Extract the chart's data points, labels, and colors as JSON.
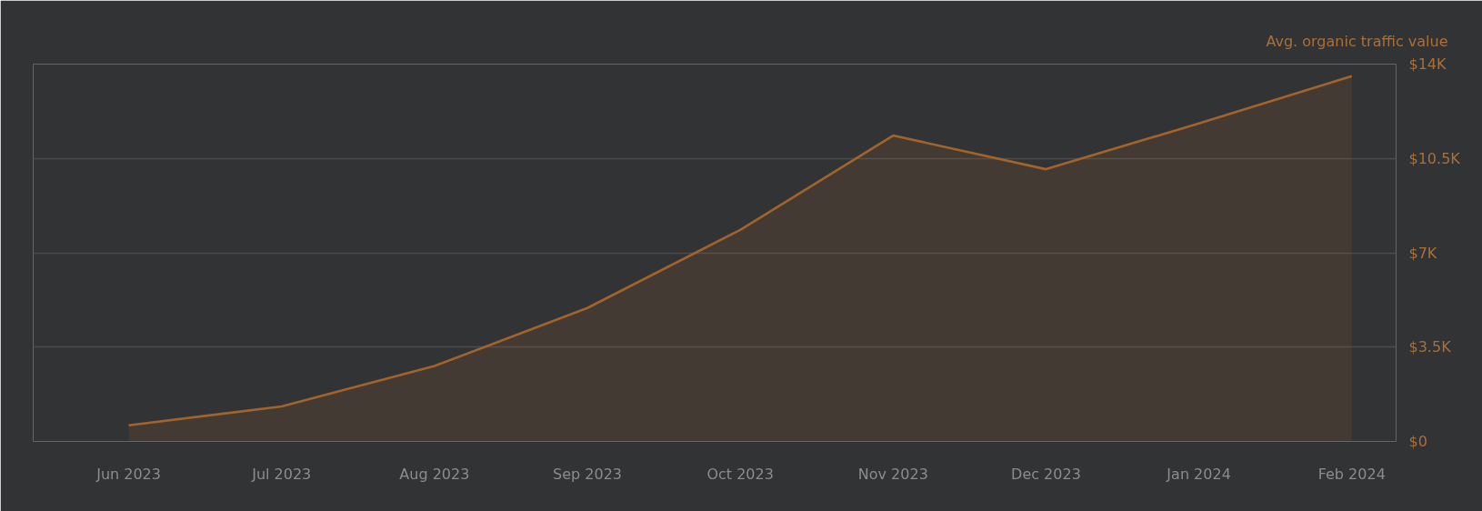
{
  "chart_data": {
    "type": "area",
    "ylabel": "Avg. organic traffic value",
    "categories": [
      "Jun 2023",
      "Jul 2023",
      "Aug 2023",
      "Sep 2023",
      "Oct 2023",
      "Nov 2023",
      "Dec 2023",
      "Jan 2024",
      "Feb 2024"
    ],
    "series": [
      {
        "color": "#a2642a",
        "values": [
          600,
          1300,
          2800,
          4950,
          7850,
          11350,
          10100,
          11800,
          13550
        ]
      }
    ],
    "ylim": [
      0,
      14000
    ],
    "yticks": [
      {
        "value": 0,
        "label": "$0"
      },
      {
        "value": 3500,
        "label": "$3.5K"
      },
      {
        "value": 7000,
        "label": "$7K"
      },
      {
        "value": 10500,
        "label": "$10.5K"
      },
      {
        "value": 14000,
        "label": "$14K"
      }
    ],
    "grid": "y"
  }
}
